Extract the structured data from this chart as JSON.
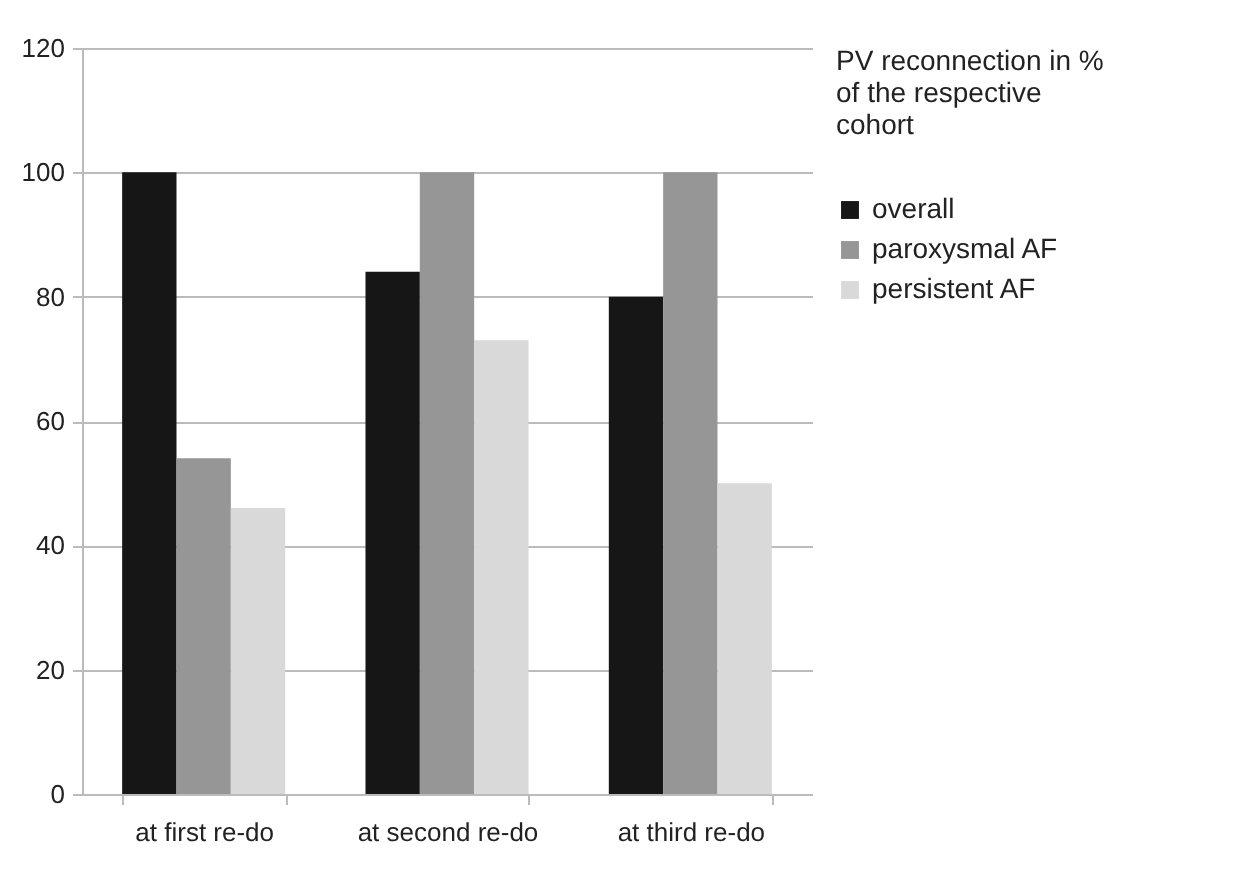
{
  "chart_data": {
    "type": "bar",
    "legend_title": "PV reconnection in % of the respective cohort",
    "categories": [
      "at first re-do",
      "at second re-do",
      "at third re-do"
    ],
    "series": [
      {
        "name": "overall",
        "color": "#161616",
        "values": [
          100,
          84,
          80
        ]
      },
      {
        "name": "paroxysmal AF",
        "color": "#969696",
        "values": [
          54,
          100,
          100
        ]
      },
      {
        "name": "persistent AF",
        "color": "#d9d9d9",
        "values": [
          46,
          73,
          50
        ]
      }
    ],
    "ylim": [
      0,
      120
    ],
    "yticks": [
      0,
      20,
      40,
      60,
      80,
      100,
      120
    ],
    "grid": "y",
    "legend": "right"
  }
}
